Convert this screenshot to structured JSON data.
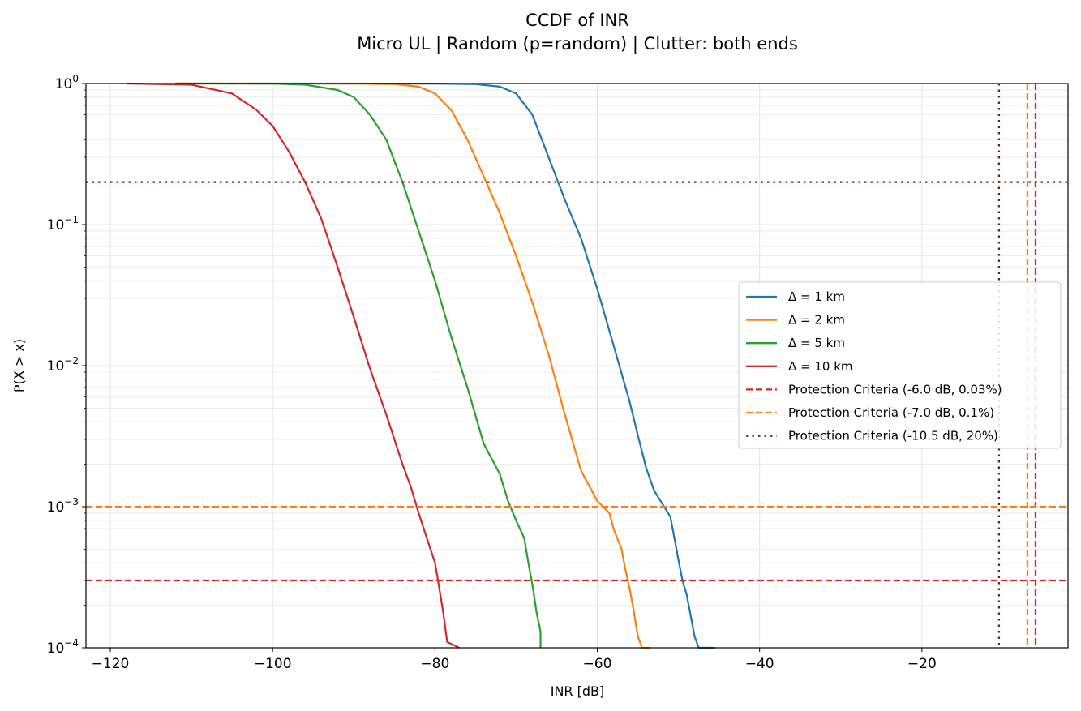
{
  "chart_data": {
    "type": "line",
    "title": "CCDF of INR",
    "subtitle": "Micro UL | Random (p=random) | Clutter: both ends",
    "xlabel": "INR [dB]",
    "ylabel": "P(X > x)",
    "xlim": [
      -123,
      -2
    ],
    "ylim": [
      0.0001,
      1
    ],
    "yscale": "log",
    "grid": true,
    "legend_position": "center-right",
    "x_ticks": [
      -120,
      -100,
      -80,
      -60,
      -40,
      -20
    ],
    "x_tick_labels": [
      "−120",
      "−100",
      "−80",
      "−60",
      "−40",
      "−20"
    ],
    "y_ticks": [
      {
        "exp": 0,
        "label": "10",
        "sup": "0"
      },
      {
        "exp": -1,
        "label": "10",
        "sup": "−1"
      },
      {
        "exp": -2,
        "label": "10",
        "sup": "−2"
      },
      {
        "exp": -3,
        "label": "10",
        "sup": "−3"
      },
      {
        "exp": -4,
        "label": "10",
        "sup": "−4"
      }
    ],
    "series": [
      {
        "name": "Δ = 1 km",
        "color": "#1f77b4",
        "x": [
          -103,
          -80,
          -75,
          -72,
          -70,
          -68,
          -66,
          -64,
          -62,
          -60,
          -58,
          -56,
          -55,
          -54,
          -53,
          -52,
          -51,
          -50.5,
          -50,
          -49.5,
          -49,
          -48.5,
          -48,
          -47.5,
          -47,
          -45.5
        ],
        "y": [
          1,
          0.999,
          0.99,
          0.95,
          0.85,
          0.6,
          0.3,
          0.15,
          0.08,
          0.035,
          0.014,
          0.0055,
          0.0032,
          0.0019,
          0.0013,
          0.00105,
          0.00085,
          0.0006,
          0.00042,
          0.0003,
          0.00024,
          0.00017,
          0.00012,
          0.0001,
          0.0001,
          0.0001
        ]
      },
      {
        "name": "Δ = 2 km",
        "color": "#ff7f0e",
        "x": [
          -112,
          -90,
          -85,
          -82,
          -80,
          -78,
          -76,
          -74,
          -72,
          -70,
          -68,
          -66,
          -64,
          -62,
          -60,
          -58.5,
          -58,
          -57,
          -56.5,
          -56,
          -55.5,
          -55,
          -54.5,
          -53.5
        ],
        "y": [
          1,
          0.999,
          0.99,
          0.95,
          0.85,
          0.65,
          0.4,
          0.22,
          0.12,
          0.06,
          0.028,
          0.012,
          0.0045,
          0.0018,
          0.0011,
          0.0009,
          0.0007,
          0.0005,
          0.00035,
          0.00026,
          0.00018,
          0.00012,
          0.0001,
          0.0001
        ]
      },
      {
        "name": "Δ = 5 km",
        "color": "#2ca02c",
        "x": [
          -112,
          -100,
          -96,
          -92,
          -90,
          -88,
          -86,
          -84,
          -82,
          -80,
          -78,
          -76,
          -74,
          -72,
          -71,
          -70,
          -69,
          -68.5,
          -68,
          -67.5,
          -67,
          -67
        ],
        "y": [
          1,
          0.999,
          0.98,
          0.9,
          0.8,
          0.6,
          0.4,
          0.2,
          0.09,
          0.04,
          0.016,
          0.007,
          0.0028,
          0.0017,
          0.0011,
          0.0008,
          0.0006,
          0.0004,
          0.00028,
          0.00018,
          0.00013,
          0.0001
        ]
      },
      {
        "name": "Δ = 10 km",
        "color": "#d62728",
        "x": [
          -118,
          -110,
          -105,
          -102,
          -100,
          -98,
          -96,
          -94,
          -92,
          -90,
          -88,
          -86,
          -84,
          -83,
          -82,
          -81,
          -80,
          -79.5,
          -79,
          -78.5,
          -77
        ],
        "y": [
          1,
          0.98,
          0.85,
          0.65,
          0.5,
          0.33,
          0.2,
          0.11,
          0.05,
          0.022,
          0.0095,
          0.0045,
          0.002,
          0.0014,
          0.0009,
          0.0006,
          0.0004,
          0.00027,
          0.00018,
          0.00011,
          0.0001
        ]
      }
    ],
    "reference_lines": [
      {
        "name": "Protection Criteria (-6.0 dB, 0.03%)",
        "color": "#d62728",
        "style": "dashed",
        "x": -6.0,
        "y": 0.0003
      },
      {
        "name": "Protection Criteria (-7.0 dB, 0.1%)",
        "color": "#ff7f0e",
        "style": "dashed",
        "x": -7.0,
        "y": 0.001
      },
      {
        "name": "Protection Criteria (-10.5 dB, 20%)",
        "color": "#6b1d1d",
        "style": "dotted",
        "x": -10.5,
        "y": 0.2
      }
    ]
  }
}
